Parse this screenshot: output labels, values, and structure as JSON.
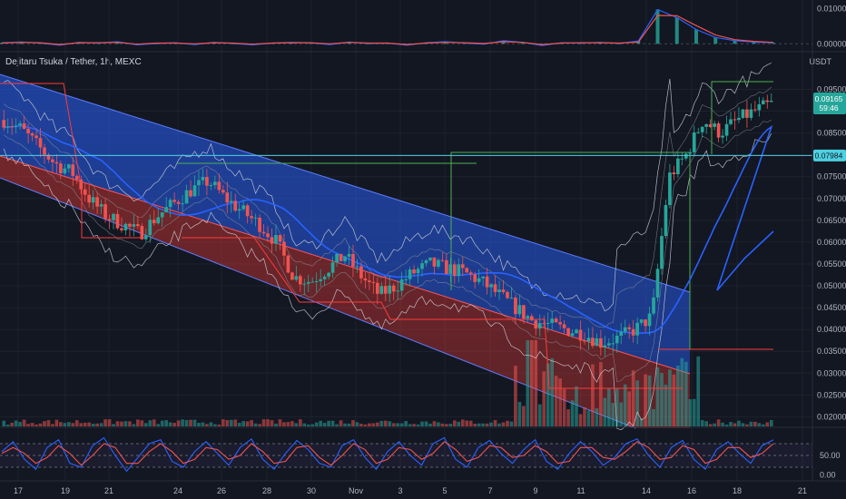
{
  "header": {
    "symbol_title": "Dejitaru Tsuka / Tether, 1h, MEXC",
    "unit": "USDT"
  },
  "price_badges": {
    "last_price": "0.09165",
    "countdown": "59:46",
    "hline_price": "0.07984"
  },
  "colors": {
    "background": "#131722",
    "up": "#26a69a",
    "down": "#ef5350",
    "channel_upper": "#2962ff",
    "channel_lower": "#e53935",
    "hline": "#4dd0e1",
    "ma_line": "#2962ff",
    "green_box": "#4caf50",
    "osc_k": "#2962ff",
    "osc_d": "#ef5350"
  },
  "chart_data": [
    {
      "type": "line",
      "pane": "top-oscillator",
      "y_ticks": [
        "0.01000",
        "0.00000"
      ],
      "ylim": [
        -0.002,
        0.012
      ],
      "series": [
        {
          "values": [
            0.0003,
            0.0005,
            0.0002,
            -0.0004,
            0.0004,
            0.0002,
            0.0006,
            -0.0003,
            0.0001,
            0.0003,
            -0.0002,
            0.0004,
            0.0001,
            -0.0003,
            0.0002,
            0.0004,
            0.0003,
            -0.0002,
            0.0005,
            0.0001,
            0.0002,
            -0.0004,
            0.0003,
            0.0006,
            0.0002,
            -0.0001,
            0.0009,
            0.0004,
            -0.0005,
            0.0003,
            0.0002,
            0.0004,
            0.0001,
            0.0008,
            0.0098,
            0.0075,
            0.0041,
            0.0018,
            0.0009,
            0.0005,
            0.0003
          ]
        },
        {
          "values": [
            0.0002,
            0.0004,
            0.0003,
            -0.0002,
            0.0003,
            0.0003,
            0.0004,
            -0.0001,
            0.0002,
            0.0002,
            0.0,
            0.0003,
            0.0002,
            -0.0001,
            0.0002,
            0.0003,
            0.0003,
            0.0,
            0.0004,
            0.0002,
            0.0002,
            -0.0002,
            0.0002,
            0.0004,
            0.0003,
            0.0001,
            0.0006,
            0.0004,
            -0.0002,
            0.0002,
            0.0003,
            0.0003,
            0.0002,
            0.0005,
            0.0081,
            0.008,
            0.0052,
            0.0025,
            0.0012,
            0.0007,
            0.0004
          ]
        }
      ]
    },
    {
      "type": "line",
      "pane": "main-price",
      "y_ticks": [
        "0.09500",
        "0.09000",
        "0.08500",
        "0.08000",
        "0.07500",
        "0.07000",
        "0.06500",
        "0.06000",
        "0.05500",
        "0.05000",
        "0.04500",
        "0.04000",
        "0.03500",
        "0.03000",
        "0.02500",
        "0.02000"
      ],
      "ylim": [
        0.0178,
        0.1005
      ],
      "x_ticks": [
        "17",
        "19",
        "21",
        "24",
        "26",
        "28",
        "30",
        "Nov",
        "3",
        "5",
        "7",
        "9",
        "11",
        "14",
        "16",
        "18",
        "21"
      ],
      "series": [
        {
          "values": [
            0.088,
            0.086,
            0.082,
            0.078,
            0.076,
            0.07,
            0.066,
            0.064,
            0.062,
            0.066,
            0.069,
            0.072,
            0.074,
            0.07,
            0.067,
            0.064,
            0.06,
            0.052,
            0.051,
            0.054,
            0.057,
            0.052,
            0.048,
            0.05,
            0.053,
            0.055,
            0.054,
            0.053,
            0.051,
            0.048,
            0.045,
            0.042,
            0.041,
            0.04,
            0.039,
            0.037,
            0.038,
            0.04,
            0.043,
            0.075,
            0.08,
            0.088,
            0.085,
            0.088,
            0.09,
            0.0917
          ]
        }
      ],
      "horizontal_line": 0.07984,
      "last_price": 0.09165
    },
    {
      "type": "line",
      "pane": "bottom-stochastic",
      "y_ticks": [
        "50.00",
        "0.00"
      ],
      "ylim": [
        -10,
        110
      ],
      "bands": [
        80,
        50,
        20
      ],
      "series": [
        {
          "values": [
            60,
            85,
            40,
            15,
            70,
            90,
            30,
            20,
            75,
            95,
            50,
            10,
            45,
            80,
            90,
            35,
            20,
            60,
            85,
            55,
            25,
            70,
            92,
            40,
            15,
            55,
            88,
            65,
            30,
            20,
            75,
            90,
            45,
            15,
            60,
            85,
            50,
            25,
            80,
            95,
            40,
            20,
            70,
            88,
            55,
            30,
            65,
            90,
            35,
            15,
            55,
            85,
            60,
            25,
            45,
            80,
            92,
            50,
            20,
            70,
            88,
            40,
            15,
            65,
            85,
            55,
            30,
            75,
            90
          ]
        },
        {
          "values": [
            55,
            70,
            55,
            30,
            45,
            75,
            55,
            25,
            50,
            80,
            70,
            30,
            30,
            60,
            80,
            60,
            30,
            40,
            70,
            65,
            40,
            50,
            80,
            60,
            30,
            35,
            70,
            75,
            45,
            25,
            50,
            80,
            65,
            30,
            40,
            70,
            65,
            40,
            55,
            85,
            65,
            35,
            45,
            75,
            70,
            45,
            50,
            75,
            60,
            30,
            35,
            70,
            70,
            45,
            40,
            60,
            85,
            70,
            40,
            45,
            75,
            65,
            30,
            40,
            70,
            70,
            45,
            55,
            80
          ]
        }
      ]
    }
  ]
}
